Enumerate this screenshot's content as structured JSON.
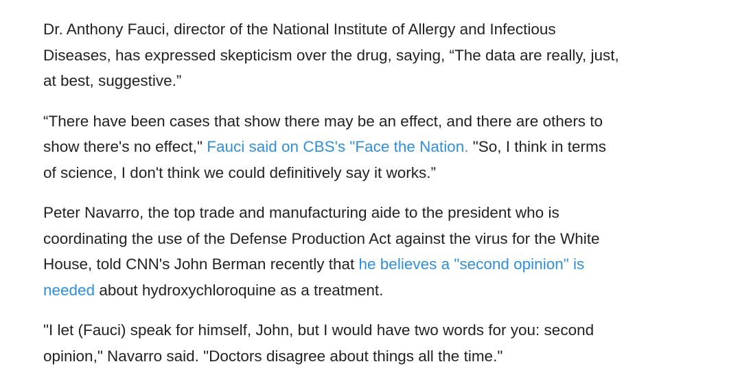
{
  "article": {
    "p1": {
      "line1": "Dr. Anthony Fauci, director of the National Institute of Allergy and Infectious",
      "line2": "Diseases, has expressed skepticism over the drug, saying, “The data are really, just,",
      "line3": "at best, suggestive.”"
    },
    "p2": {
      "line1": "“There have been cases that show there may be an effect, and there are others to",
      "line2_before": "show there's no effect,\" ",
      "line2_link": "Fauci said on CBS's \"Face the Nation.",
      "line2_after": " \"So, I think in terms",
      "line3": "of science, I don't think we could definitively say it works.”"
    },
    "p3": {
      "line1": "Peter Navarro, the top trade and manufacturing aide to the president who is",
      "line2": "coordinating the use of the Defense Production Act against the virus for the White",
      "line3_before": "House, told CNN's John Berman recently that ",
      "line3_link": "he believes a \"second opinion\" is",
      "line4_link": "needed",
      "line4_after": " about hydroxychloroquine as a treatment."
    },
    "p4": {
      "line1": "\"I let (Fauci) speak for himself, John, but I would have two words for you: second",
      "line2": "opinion,\" Navarro said. \"Doctors disagree about things all the time.\""
    },
    "link_color": "#2f8fdc",
    "text_color": "#222222"
  }
}
